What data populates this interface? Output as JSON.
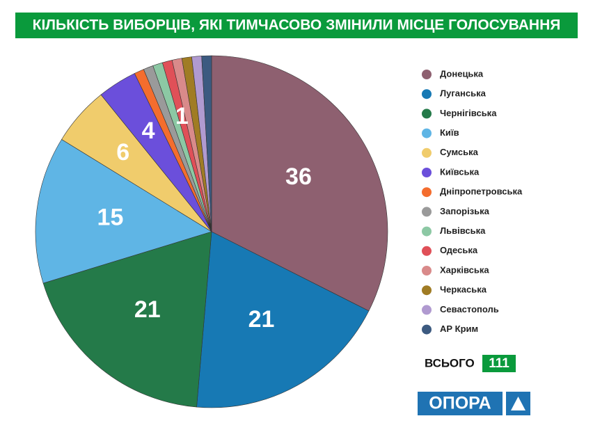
{
  "chart_data": {
    "type": "pie",
    "title": "КІЛЬКІСТЬ ВИБОРЦІВ, ЯКІ ТИМЧАСОВО ЗМІНИЛИ МІСЦЕ ГОЛОСУВАННЯ",
    "categories": [
      "Донецька",
      "Луганська",
      "Чернігівська",
      "Київ",
      "Сумська",
      "Київська",
      "Дніпропетровська",
      "Запорізька",
      "Львівська",
      "Одеська",
      "Харківська",
      "Черкаська",
      "Севастополь",
      "АР Крим"
    ],
    "values": [
      36,
      21,
      21,
      15,
      6,
      4,
      1,
      1,
      1,
      1,
      1,
      1,
      1,
      1
    ],
    "value_labels": [
      "36",
      "21",
      "21",
      "15",
      "6",
      "4",
      null,
      null,
      null,
      "1",
      null,
      null,
      null,
      null
    ],
    "colors": [
      "#8e6070",
      "#1779b4",
      "#247a49",
      "#5fb5e5",
      "#f0cc6c",
      "#6b4fdb",
      "#f46d2e",
      "#9a9a9a",
      "#8cc8a4",
      "#e05058",
      "#d98a8a",
      "#a07c24",
      "#b09ad0",
      "#3c5a80"
    ],
    "legend": "right",
    "total_label": "ВСЬОГО",
    "total": 111,
    "logo": "ОПОРА"
  }
}
